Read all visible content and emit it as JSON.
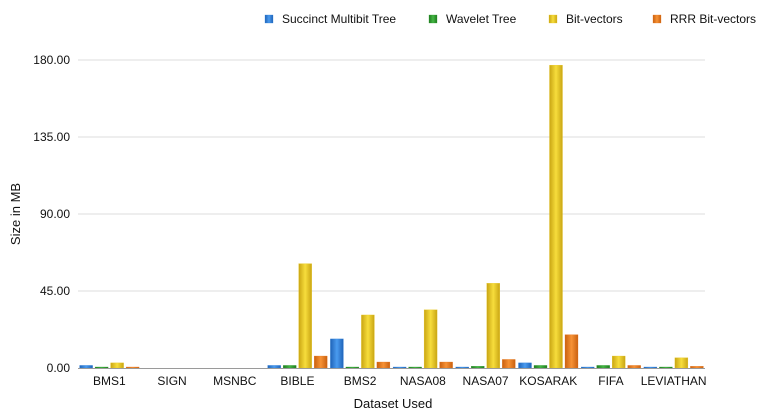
{
  "chart_data": {
    "type": "bar",
    "title": "",
    "xlabel": "Dataset Used",
    "ylabel": "Size in MB",
    "ylim": [
      0,
      180
    ],
    "yticks": [
      "0.00",
      "45.00",
      "90.00",
      "135.00",
      "180.00"
    ],
    "ytick_values": [
      0,
      45,
      90,
      135,
      180
    ],
    "grid": true,
    "legend_position": "top-right",
    "categories": [
      "BMS1",
      "SIGN",
      "MSNBC",
      "BIBLE",
      "BMS2",
      "NASA08",
      "NASA07",
      "KOSARAK",
      "FIFA",
      "LEVIATHAN"
    ],
    "series": [
      {
        "name": "Succinct Multibit Tree",
        "color": "#2f7fd8",
        "values": [
          1.5,
          0,
          0,
          1.5,
          17,
          0.5,
          0.5,
          3,
          0.5,
          0.5
        ]
      },
      {
        "name": "Wavelet Tree",
        "color": "#2e9a2e",
        "values": [
          0.5,
          0,
          0,
          1.5,
          0.5,
          0.5,
          1,
          1.5,
          1.5,
          0.3
        ]
      },
      {
        "name": "Bit-vectors",
        "color": "#e8c61e",
        "values": [
          3,
          0,
          0,
          61,
          31,
          34,
          49.5,
          177,
          7,
          6
        ]
      },
      {
        "name": "RRR Bit-vectors",
        "color": "#e8781e",
        "values": [
          0.3,
          0,
          0,
          7,
          3.5,
          3.5,
          5,
          19.5,
          1.5,
          1
        ]
      }
    ]
  }
}
